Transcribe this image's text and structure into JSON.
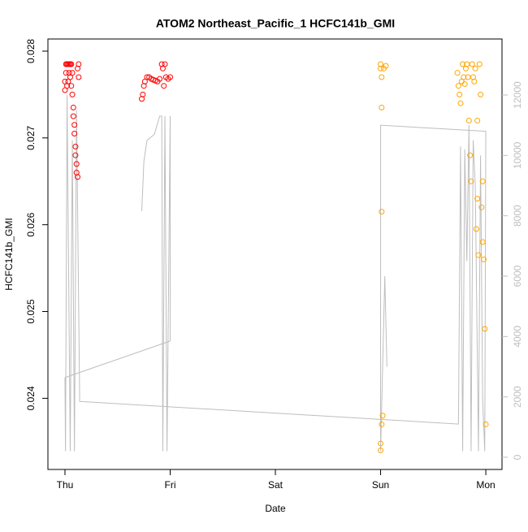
{
  "chart_data": {
    "type": "scatter",
    "title": "ATOM2 Northeast_Pacific_1 HCFC141b_GMI",
    "xlabel": "Date",
    "ylabel": "HCFC141b_GMI",
    "xlim": [
      -0.162,
      4.154
    ],
    "xticks": [
      {
        "value": 0,
        "label": "Thu"
      },
      {
        "value": 1,
        "label": "Fri"
      },
      {
        "value": 2,
        "label": "Sat"
      },
      {
        "value": 3,
        "label": "Sun"
      },
      {
        "value": 4,
        "label": "Mon"
      }
    ],
    "ylim": [
      0.02318,
      0.02814
    ],
    "yticks": [
      0.024,
      0.025,
      0.026,
      0.027,
      0.028
    ],
    "y2lim": [
      -404,
      13857
    ],
    "y2ticks": [
      0,
      2000,
      4000,
      6000,
      8000,
      10000,
      12000
    ],
    "y2color": "#bebebe",
    "series": [
      {
        "type": "line",
        "axis": "y2",
        "color": "#bebebe",
        "x": [
          0,
          1.0,
          null,
          0.0,
          0.005,
          0.02,
          0.05,
          0.07,
          0.09,
          0.11,
          0.14,
          3.74,
          3.76,
          3.78,
          3.8,
          3.82,
          3.84,
          3.86,
          3.88,
          3.9,
          3.93,
          3.95,
          3.97,
          3.99,
          4.0,
          3.0,
          3.0,
          3.04,
          3.06,
          null,
          0.73,
          0.75,
          0.78,
          0.85,
          0.9,
          0.92,
          0.93,
          0.95,
          0.97,
          1.0,
          1.0
        ],
        "values": [
          2640,
          3850,
          null,
          2640,
          200,
          12000,
          200,
          10500,
          200,
          11500,
          1850,
          1100,
          10300,
          200,
          10200,
          6500,
          11000,
          200,
          10500,
          9000,
          200,
          10000,
          1900,
          200,
          10800,
          11000,
          200,
          6000,
          3000,
          null,
          8150,
          9800,
          10500,
          10700,
          11300,
          11300,
          200,
          11300,
          200,
          11300,
          3850
        ]
      },
      {
        "type": "scatter",
        "color": "#ff0000",
        "x": [
          0.0,
          0.0,
          0.01,
          0.01,
          0.02,
          0.02,
          0.03,
          0.03,
          0.04,
          0.04,
          0.05,
          0.05,
          0.06,
          0.06,
          0.07,
          0.07,
          0.08,
          0.08,
          0.09,
          0.09,
          0.1,
          0.1,
          0.11,
          0.11,
          0.12,
          0.12,
          0.13,
          0.13,
          0.73,
          0.74,
          0.75,
          0.76,
          0.78,
          0.8,
          0.82,
          0.84,
          0.86,
          0.88,
          0.9,
          0.92,
          0.93,
          0.94,
          0.95,
          0.96,
          0.98,
          1.0
        ],
        "values": [
          0.02765,
          0.02755,
          0.02785,
          0.02775,
          0.02785,
          0.0276,
          0.02785,
          0.02765,
          0.02785,
          0.02775,
          0.02785,
          0.0277,
          0.02785,
          0.0276,
          0.02775,
          0.0275,
          0.02735,
          0.02725,
          0.02715,
          0.02705,
          0.0269,
          0.0268,
          0.0267,
          0.0266,
          0.02655,
          0.0278,
          0.02785,
          0.0277,
          0.02745,
          0.0275,
          0.0276,
          0.02765,
          0.0277,
          0.0277,
          0.02768,
          0.02767,
          0.02766,
          0.02765,
          0.02768,
          0.02785,
          0.0278,
          0.0276,
          0.02785,
          0.0277,
          0.02768,
          0.0277
        ]
      },
      {
        "type": "scatter",
        "color": "#ffa500",
        "x": [
          3.0,
          3.0,
          3.01,
          3.01,
          3.01,
          3.01,
          3.0,
          3.0,
          3.02,
          3.03,
          3.05,
          3.73,
          3.74,
          3.75,
          3.76,
          3.77,
          3.78,
          3.79,
          3.8,
          3.81,
          3.82,
          3.83,
          3.84,
          3.85,
          3.86,
          3.87,
          3.88,
          3.89,
          3.9,
          3.91,
          3.92,
          3.93,
          3.94,
          3.95,
          3.96,
          3.97,
          3.98,
          3.99,
          4.0,
          3.92,
          3.97
        ],
        "values": [
          0.02785,
          0.0278,
          0.0277,
          0.02735,
          0.02615,
          0.0237,
          0.02348,
          0.0234,
          0.0238,
          0.0278,
          0.02783,
          0.02775,
          0.0276,
          0.0275,
          0.0274,
          0.02765,
          0.02785,
          0.0277,
          0.02762,
          0.0278,
          0.02785,
          0.0277,
          0.0272,
          0.0268,
          0.0265,
          0.02785,
          0.0277,
          0.02765,
          0.0278,
          0.02595,
          0.0263,
          0.02565,
          0.02785,
          0.0275,
          0.0262,
          0.0258,
          0.0256,
          0.0248,
          0.0237,
          0.0272,
          0.0265
        ]
      }
    ]
  }
}
